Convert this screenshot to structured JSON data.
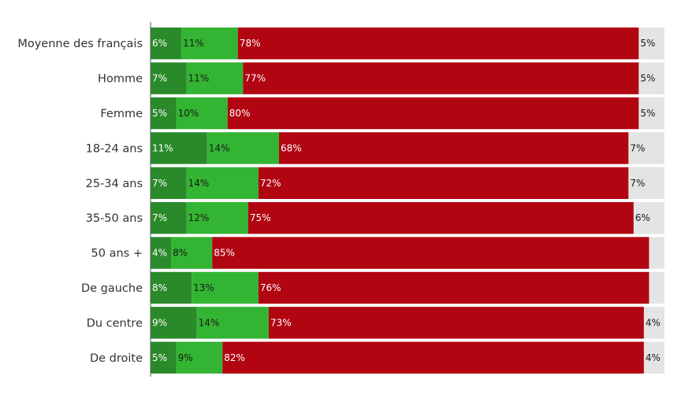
{
  "chart_data": {
    "type": "bar",
    "orientation": "horizontal",
    "stacked": true,
    "categories": [
      "Moyenne des français",
      "Homme",
      "Femme",
      "18-24 ans",
      "25-34 ans",
      "35-50 ans",
      "50 ans +",
      "De gauche",
      "Du centre",
      "De droite"
    ],
    "series": [
      {
        "color": "#2a8a2a",
        "label_color": "#ffffff",
        "values": [
          6,
          7,
          5,
          11,
          7,
          7,
          4,
          8,
          9,
          5
        ]
      },
      {
        "color": "#33b533",
        "label_color": "#1a1a1a",
        "values": [
          11,
          11,
          10,
          14,
          14,
          12,
          8,
          13,
          14,
          9
        ]
      },
      {
        "color": "#b20512",
        "label_color": "#ffffff",
        "values": [
          78,
          77,
          80,
          68,
          72,
          75,
          85,
          76,
          73,
          82
        ]
      },
      {
        "color": "#e4e4e4",
        "label_color": "#1a1a1a",
        "values": [
          5,
          5,
          5,
          7,
          7,
          6,
          null,
          null,
          4,
          4
        ]
      }
    ],
    "xlim": [
      0,
      100
    ],
    "value_suffix": "%",
    "grid": false,
    "legend": "none"
  }
}
